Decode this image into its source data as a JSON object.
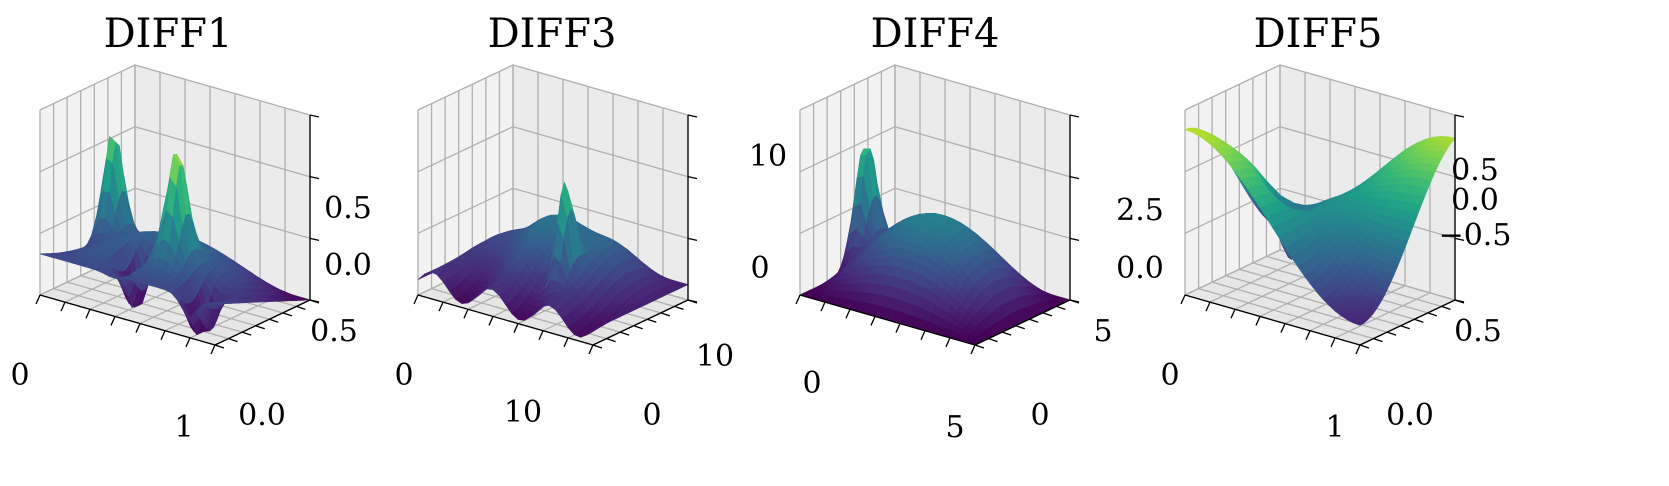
{
  "figure": {
    "colormap": "viridis",
    "colors": {
      "viridis_low": "#440154",
      "viridis_mid": "#21918c",
      "viridis_high": "#fde725",
      "pane_left": "#f2f2f2",
      "pane_right": "#ebebeb",
      "pane_floor": "#e6e6e6",
      "grid": "#b0b0b0"
    }
  },
  "chart_data": [
    {
      "type": "surface",
      "title": "DIFF1",
      "surface": "diff1",
      "xlim": [
        0,
        1
      ],
      "ylim": [
        0,
        1
      ],
      "zlim": [
        0,
        0.9
      ],
      "x_ticks": [
        0,
        1
      ],
      "x_tick_labels": [
        "0",
        "1"
      ],
      "y_ticks": [
        0,
        0.5
      ],
      "y_tick_labels": [
        "0.0",
        "0.5"
      ],
      "z_ticks": [
        0,
        0.5
      ],
      "z_tick_labels": [
        "0.0",
        "0.5"
      ]
    },
    {
      "type": "surface",
      "title": "DIFF3",
      "surface": "diff3",
      "xlim": [
        0,
        15
      ],
      "ylim": [
        0,
        15
      ],
      "zlim": [
        0,
        12
      ],
      "x_ticks": [
        0,
        10
      ],
      "x_tick_labels": [
        "0",
        "10"
      ],
      "y_ticks": [
        0,
        10
      ],
      "y_tick_labels": [
        "0",
        "10"
      ],
      "z_ticks": [
        0,
        10
      ],
      "z_tick_labels": [
        "0",
        "10"
      ]
    },
    {
      "type": "surface",
      "title": "DIFF4",
      "surface": "diff4",
      "xlim": [
        0,
        7
      ],
      "ylim": [
        0,
        7
      ],
      "zlim": [
        0,
        5
      ],
      "x_ticks": [
        0,
        5
      ],
      "x_tick_labels": [
        "0",
        "5"
      ],
      "y_ticks": [
        0,
        5
      ],
      "y_tick_labels": [
        "0",
        "5"
      ],
      "z_ticks": [
        0,
        2.5
      ],
      "z_tick_labels": [
        "0.0",
        "2.5"
      ]
    },
    {
      "type": "surface",
      "title": "DIFF5",
      "surface": "diff5",
      "xlim": [
        0,
        1
      ],
      "ylim": [
        0,
        1
      ],
      "zlim": [
        -0.8,
        0.8
      ],
      "x_ticks": [
        0,
        1
      ],
      "x_tick_labels": [
        "0",
        "1"
      ],
      "y_ticks": [
        0,
        0.5
      ],
      "y_tick_labels": [
        "0.0",
        "0.5"
      ],
      "z_ticks": [
        -0.5,
        0,
        0.5
      ],
      "z_tick_labels": [
        "−0.5",
        "0.0",
        "0.5"
      ]
    }
  ]
}
